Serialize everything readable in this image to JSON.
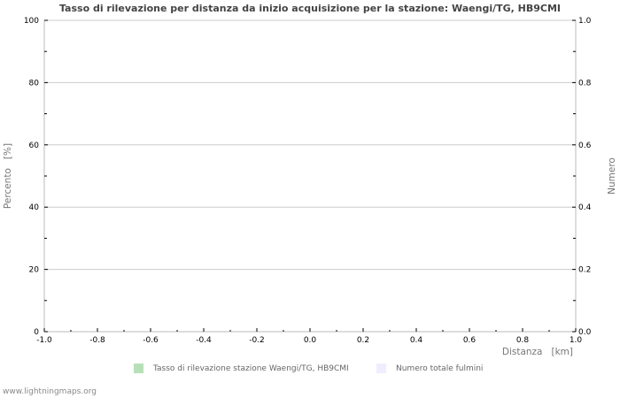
{
  "chart_data": {
    "type": "bar",
    "title": "Tasso di rilevazione per distanza da inizio acquisizione per la stazione: Waengi/TG, HB9CMI",
    "xlabel": "Distanza   [km]",
    "ylabel": "Percento   [%]",
    "y2label": "Numero",
    "x_ticks": [
      "-1.0",
      "-0.8",
      "-0.6",
      "-0.4",
      "-0.2",
      "0.0",
      "0.2",
      "0.4",
      "0.6",
      "0.8",
      "1.0"
    ],
    "y_ticks": [
      "0",
      "20",
      "40",
      "60",
      "80",
      "100"
    ],
    "y2_ticks": [
      "0.0",
      "0.2",
      "0.4",
      "0.6",
      "0.8",
      "1.0"
    ],
    "xlim": [
      -1.0,
      1.0
    ],
    "ylim": [
      0,
      100
    ],
    "y2lim": [
      0.0,
      1.0
    ],
    "grid": true,
    "legend_position": "bottom",
    "series": [
      {
        "name": "Tasso di rilevazione stazione Waengi/TG, HB9CMI",
        "color": "#b8e0b8",
        "values": []
      },
      {
        "name": "Numero totale fulmini",
        "color": "#eeeeff",
        "values": []
      }
    ]
  },
  "legend": {
    "items": [
      {
        "label": "Tasso di rilevazione stazione Waengi/TG, HB9CMI",
        "color": "#b8e0b8"
      },
      {
        "label": "Numero totale fulmini",
        "color": "#eeeeff"
      }
    ]
  },
  "footer": {
    "text": "www.lightningmaps.org"
  }
}
